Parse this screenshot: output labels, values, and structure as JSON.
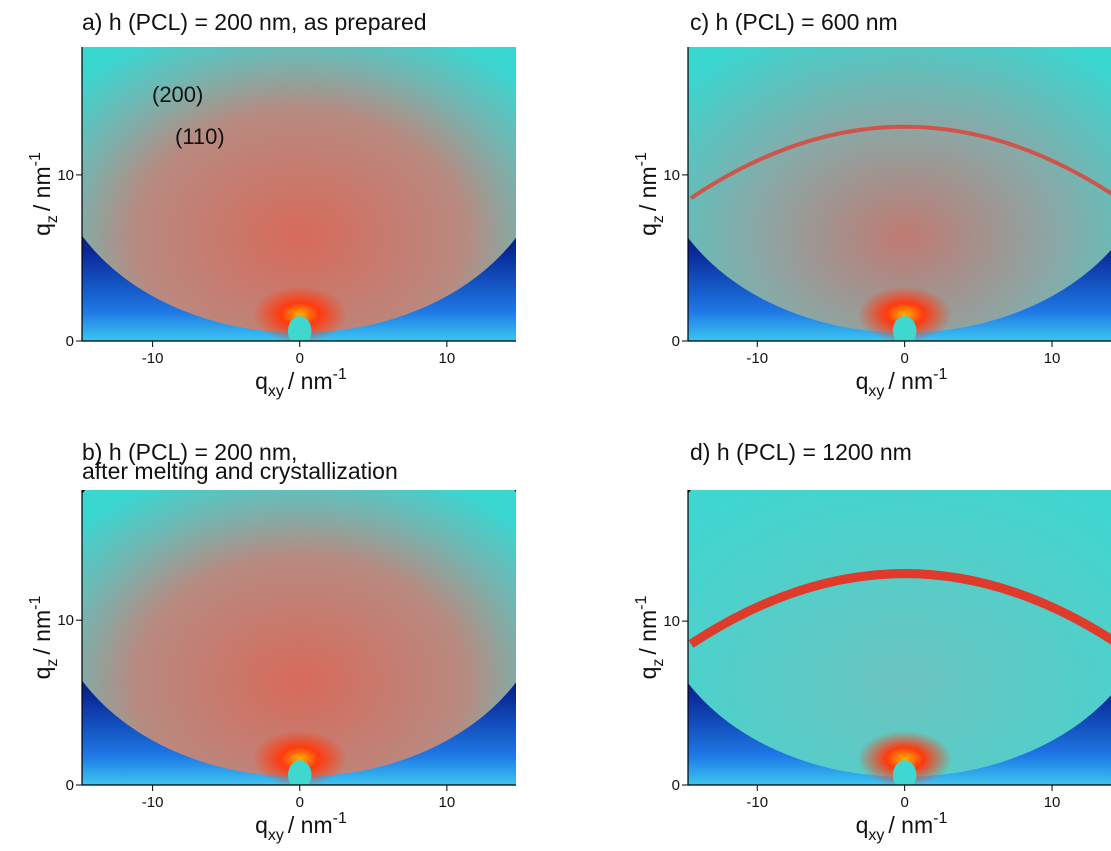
{
  "chart_data": [
    {
      "type": "image",
      "title": [
        "a) h (PCL) = 200 nm, as prepared"
      ],
      "xlabel": {
        "symbol": "q",
        "subscript": "xy",
        "unit": "/ nm",
        "superscript": "-1"
      },
      "ylabel": {
        "symbol": "q",
        "subscript": "z",
        "unit": "/ nm",
        "superscript": "-1"
      },
      "xlim": [
        -14.8,
        14.7
      ],
      "ylim": [
        0,
        17.7
      ],
      "xticks": [
        -10,
        0,
        10
      ],
      "yticks": [
        0,
        10
      ],
      "annotations": [
        "(200)",
        "(110)"
      ]
    },
    {
      "type": "image",
      "title": [
        "b) h (PCL) = 200 nm,",
        "after melting and crystallization"
      ],
      "xlabel": {
        "symbol": "q",
        "subscript": "xy",
        "unit": "/ nm",
        "superscript": "-1"
      },
      "ylabel": {
        "symbol": "q",
        "subscript": "z",
        "unit": "/ nm",
        "superscript": "-1"
      },
      "xlim": [
        -14.8,
        14.7
      ],
      "ylim": [
        0,
        17.9
      ],
      "xticks": [
        -10,
        0,
        10
      ],
      "yticks": [
        0,
        10
      ]
    },
    {
      "type": "image",
      "title": [
        "c) h (PCL) = 600 nm"
      ],
      "xlabel": {
        "symbol": "q",
        "subscript": "xy",
        "unit": "/ nm",
        "superscript": "-1"
      },
      "ylabel": {
        "symbol": "q",
        "subscript": "z",
        "unit": "/ nm",
        "superscript": "-1"
      },
      "xlim": [
        -14.7,
        14.0
      ],
      "ylim": [
        0,
        17.7
      ],
      "xticks": [
        -10,
        0,
        10
      ],
      "yticks": [
        0,
        10
      ]
    },
    {
      "type": "image",
      "title": [
        "d) h (PCL) = 1200 nm"
      ],
      "xlabel": {
        "symbol": "q",
        "subscript": "xy",
        "unit": "/ nm",
        "superscript": "-1"
      },
      "ylabel": {
        "symbol": "q",
        "subscript": "z",
        "unit": "/ nm",
        "superscript": "-1"
      },
      "xlim": [
        -14.7,
        14.0
      ],
      "ylim": [
        0,
        18.0
      ],
      "xticks": [
        -10,
        0,
        10
      ],
      "yticks": [
        0,
        10
      ]
    }
  ]
}
